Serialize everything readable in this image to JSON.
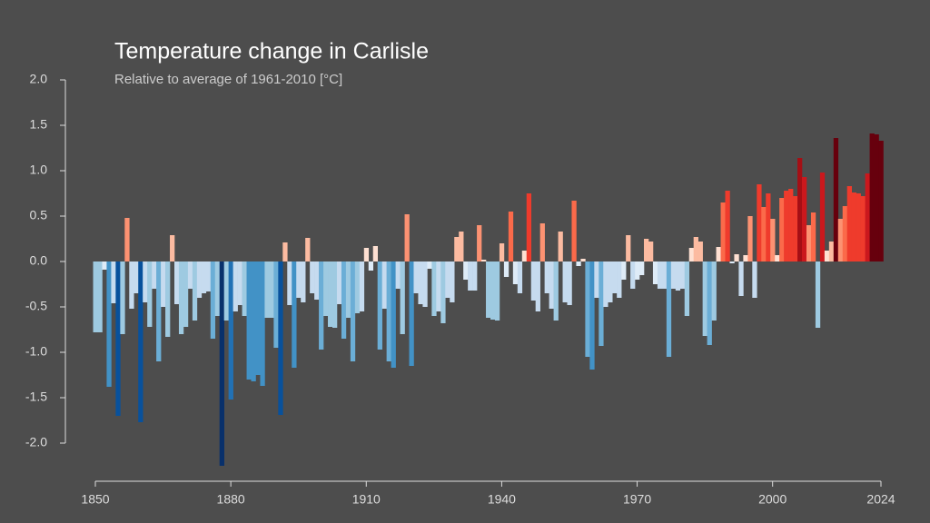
{
  "chart_data": {
    "type": "bar",
    "title": "Temperature change in Carlisle",
    "subtitle": "Relative to average of 1961-2010  [°C]",
    "x": [
      1850,
      1851,
      1852,
      1853,
      1854,
      1855,
      1856,
      1857,
      1858,
      1859,
      1860,
      1861,
      1862,
      1863,
      1864,
      1865,
      1866,
      1867,
      1868,
      1869,
      1870,
      1871,
      1872,
      1873,
      1874,
      1875,
      1876,
      1877,
      1878,
      1879,
      1880,
      1881,
      1882,
      1883,
      1884,
      1885,
      1886,
      1887,
      1888,
      1889,
      1890,
      1891,
      1892,
      1893,
      1894,
      1895,
      1896,
      1897,
      1898,
      1899,
      1900,
      1901,
      1902,
      1903,
      1904,
      1905,
      1906,
      1907,
      1908,
      1909,
      1910,
      1911,
      1912,
      1913,
      1914,
      1915,
      1916,
      1917,
      1918,
      1919,
      1920,
      1921,
      1922,
      1923,
      1924,
      1925,
      1926,
      1927,
      1928,
      1929,
      1930,
      1931,
      1932,
      1933,
      1934,
      1935,
      1936,
      1937,
      1938,
      1939,
      1940,
      1941,
      1942,
      1943,
      1944,
      1945,
      1946,
      1947,
      1948,
      1949,
      1950,
      1951,
      1952,
      1953,
      1954,
      1955,
      1956,
      1957,
      1958,
      1959,
      1960,
      1961,
      1962,
      1963,
      1964,
      1965,
      1966,
      1967,
      1968,
      1969,
      1970,
      1971,
      1972,
      1973,
      1974,
      1975,
      1976,
      1977,
      1978,
      1979,
      1980,
      1981,
      1982,
      1983,
      1984,
      1985,
      1986,
      1987,
      1988,
      1989,
      1990,
      1991,
      1992,
      1993,
      1994,
      1995,
      1996,
      1997,
      1998,
      1999,
      2000,
      2001,
      2002,
      2003,
      2004,
      2005,
      2006,
      2007,
      2008,
      2009,
      2010,
      2011,
      2012,
      2013,
      2014,
      2015,
      2016,
      2017,
      2018,
      2019,
      2020,
      2021,
      2022,
      2023,
      2024
    ],
    "values": [
      -0.78,
      -0.78,
      -0.09,
      -1.38,
      -0.46,
      -1.7,
      -0.8,
      0.48,
      -0.52,
      -0.35,
      -1.77,
      -0.45,
      -0.72,
      -0.3,
      -1.1,
      -0.5,
      -0.83,
      0.29,
      -0.47,
      -0.8,
      -0.72,
      -0.3,
      -0.65,
      -0.4,
      -0.35,
      -0.33,
      -0.85,
      -0.6,
      -2.25,
      -0.65,
      -1.52,
      -0.55,
      -0.48,
      -0.6,
      -1.3,
      -1.32,
      -1.25,
      -1.37,
      -0.62,
      -0.62,
      -0.95,
      -1.69,
      0.21,
      -0.48,
      -1.17,
      -0.4,
      -0.45,
      0.26,
      -0.35,
      -0.42,
      -0.97,
      -0.6,
      -0.72,
      -0.73,
      -0.47,
      -0.85,
      -0.62,
      -1.1,
      -0.57,
      -0.55,
      0.15,
      -0.1,
      0.17,
      -0.97,
      -0.52,
      -1.1,
      -1.17,
      -0.3,
      -0.8,
      0.52,
      -1.15,
      -0.35,
      -0.47,
      -0.5,
      -0.08,
      -0.6,
      -0.55,
      -0.68,
      -0.4,
      -0.45,
      0.27,
      0.33,
      -0.2,
      -0.32,
      -0.32,
      0.4,
      0.02,
      -0.62,
      -0.64,
      -0.65,
      0.2,
      -0.17,
      0.55,
      -0.25,
      -0.35,
      0.12,
      0.75,
      -0.43,
      -0.55,
      0.42,
      -0.35,
      -0.52,
      -0.65,
      0.33,
      -0.45,
      -0.48,
      0.67,
      -0.05,
      0.03,
      -1.05,
      -1.19,
      -0.4,
      -0.93,
      -0.5,
      -0.45,
      -0.35,
      -0.4,
      -0.2,
      0.29,
      -0.3,
      -0.2,
      -0.15,
      0.25,
      0.22,
      -0.25,
      -0.3,
      -0.3,
      -1.05,
      -0.3,
      -0.32,
      -0.3,
      -0.6,
      0.15,
      0.27,
      0.22,
      -0.82,
      -0.92,
      -0.65,
      0.16,
      0.65,
      0.78,
      -0.02,
      0.08,
      -0.38,
      0.07,
      0.5,
      -0.4,
      0.85,
      0.6,
      0.75,
      0.47,
      0.07,
      0.7,
      0.78,
      0.8,
      0.72,
      1.14,
      0.93,
      0.4,
      0.54,
      -0.73,
      0.98,
      0.12,
      0.22,
      1.36,
      0.47,
      0.61,
      0.83,
      0.76,
      0.75,
      0.72,
      0.97,
      1.41,
      1.4,
      1.33
    ],
    "negative_colors": [
      "#deebf7",
      "#c6dbef",
      "#9ecae1",
      "#6baed6",
      "#4292c6",
      "#2171b5",
      "#08519c",
      "#08306b"
    ],
    "positive_colors": [
      "#fee0d2",
      "#fcbba1",
      "#fc9272",
      "#fb6a4a",
      "#ef3b2c",
      "#cb181d",
      "#a50f15",
      "#67000d"
    ],
    "xlim": [
      1850,
      2024
    ],
    "xticks": [
      1850,
      1880,
      1910,
      1940,
      1970,
      2000,
      2024
    ],
    "ylim": [
      -2.42,
      2.0
    ],
    "yticks": [
      {
        "value": 2,
        "label": "2.0"
      },
      1.5,
      {
        "value": 1,
        "label": "1.0"
      },
      0.5,
      {
        "value": 0,
        "label": "0.0"
      },
      -0.5,
      {
        "value": -1,
        "label": "-1.0"
      },
      -1.5,
      {
        "value": -2,
        "label": "-2.0"
      }
    ]
  }
}
